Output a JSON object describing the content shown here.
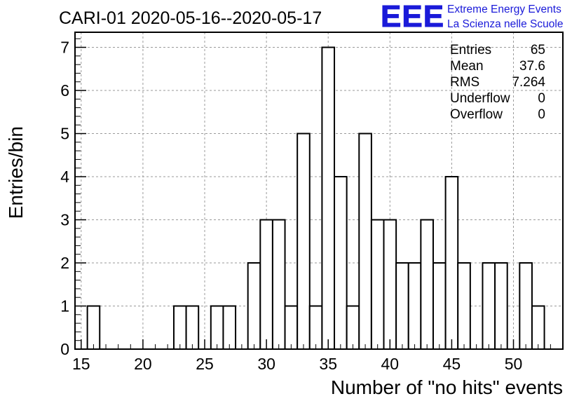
{
  "header": {
    "title": "CARI-01 2020-05-16--2020-05-17",
    "logo_letters": "EEE",
    "logo_line1": "Extreme Energy Events",
    "logo_line2": "La Scienza nelle Scuole",
    "logo_color": "#1a1ad9"
  },
  "stats": {
    "rows": [
      {
        "label": "Entries",
        "value": "65"
      },
      {
        "label": "Mean",
        "value": "37.6"
      },
      {
        "label": "RMS",
        "value": "7.264"
      },
      {
        "label": "Underflow",
        "value": "0"
      },
      {
        "label": "Overflow",
        "value": "0"
      }
    ]
  },
  "chart_data": {
    "type": "bar",
    "title": "CARI-01 2020-05-16--2020-05-17",
    "xlabel": "Number of \"no hits\" events",
    "ylabel": "Entries/bin",
    "xlim": [
      14.5,
      54
    ],
    "ylim": [
      0,
      7.35
    ],
    "bin_width": 1,
    "bin_edges_offset": 0.5,
    "x_ticks": [
      15,
      20,
      25,
      30,
      35,
      40,
      45,
      50
    ],
    "y_ticks": [
      0,
      1,
      2,
      3,
      4,
      5,
      6,
      7
    ],
    "grid": true,
    "legend": "none",
    "bins": [
      {
        "x": 16,
        "count": 1
      },
      {
        "x": 23,
        "count": 1
      },
      {
        "x": 24,
        "count": 1
      },
      {
        "x": 26,
        "count": 1
      },
      {
        "x": 27,
        "count": 1
      },
      {
        "x": 29,
        "count": 2
      },
      {
        "x": 30,
        "count": 3
      },
      {
        "x": 31,
        "count": 3
      },
      {
        "x": 32,
        "count": 1
      },
      {
        "x": 33,
        "count": 5
      },
      {
        "x": 34,
        "count": 1
      },
      {
        "x": 35,
        "count": 7
      },
      {
        "x": 36,
        "count": 4
      },
      {
        "x": 37,
        "count": 1
      },
      {
        "x": 38,
        "count": 5
      },
      {
        "x": 39,
        "count": 3
      },
      {
        "x": 40,
        "count": 3
      },
      {
        "x": 41,
        "count": 2
      },
      {
        "x": 42,
        "count": 2
      },
      {
        "x": 43,
        "count": 3
      },
      {
        "x": 44,
        "count": 2
      },
      {
        "x": 45,
        "count": 4
      },
      {
        "x": 46,
        "count": 2
      },
      {
        "x": 48,
        "count": 2
      },
      {
        "x": 49,
        "count": 2
      },
      {
        "x": 51,
        "count": 2
      },
      {
        "x": 52,
        "count": 1
      }
    ]
  }
}
